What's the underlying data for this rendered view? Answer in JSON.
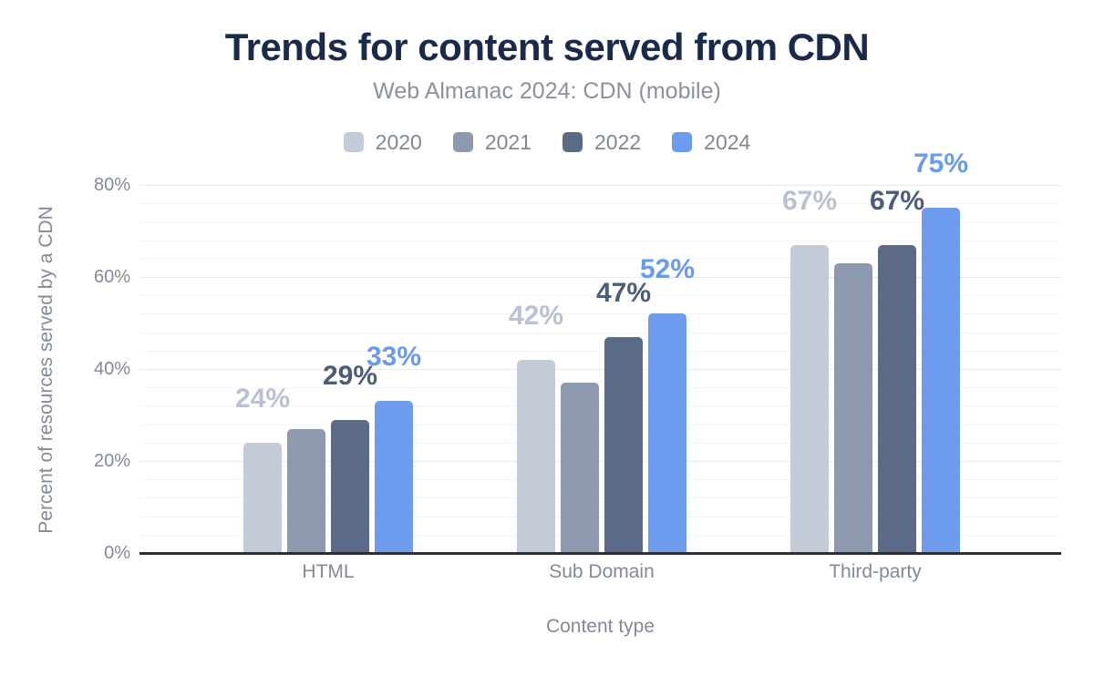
{
  "chart_data": {
    "type": "bar",
    "title": "Trends for content served from CDN",
    "subtitle": "Web Almanac 2024: CDN (mobile)",
    "xlabel": "Content type",
    "ylabel": "Percent of resources served by a CDN",
    "categories": [
      "HTML",
      "Sub Domain",
      "Third-party"
    ],
    "series": [
      {
        "name": "2020",
        "color": "#c3cbd8",
        "label_color": "#b8c2d2",
        "values": [
          24,
          42,
          67
        ],
        "data_labels": [
          "24%",
          "42%",
          "67%"
        ]
      },
      {
        "name": "2021",
        "color": "#8d99ae",
        "label_color": null,
        "values": [
          27,
          37,
          63
        ],
        "data_labels": null
      },
      {
        "name": "2022",
        "color": "#5b6a86",
        "label_color": "#4d5c77",
        "values": [
          29,
          47,
          67
        ],
        "data_labels": [
          "29%",
          "47%",
          "67%"
        ]
      },
      {
        "name": "2024",
        "color": "#6d9cee",
        "label_color": "#689af0",
        "values": [
          33,
          52,
          75
        ],
        "data_labels": [
          "33%",
          "52%",
          "75%"
        ]
      }
    ],
    "y_ticks": [
      {
        "label": "0%",
        "value": 0
      },
      {
        "label": "20%",
        "value": 20
      },
      {
        "label": "40%",
        "value": 40
      },
      {
        "label": "60%",
        "value": 60
      },
      {
        "label": "80%",
        "value": 80
      }
    ],
    "ylim": [
      0,
      80
    ],
    "grid": {
      "horizontal": true,
      "minor_step": 4,
      "major_step": 20
    },
    "legend_position": "top",
    "colors": {
      "title_text": "#1a2a4a",
      "muted_text": "#828a98",
      "axis_line": "#2b2e36"
    }
  }
}
